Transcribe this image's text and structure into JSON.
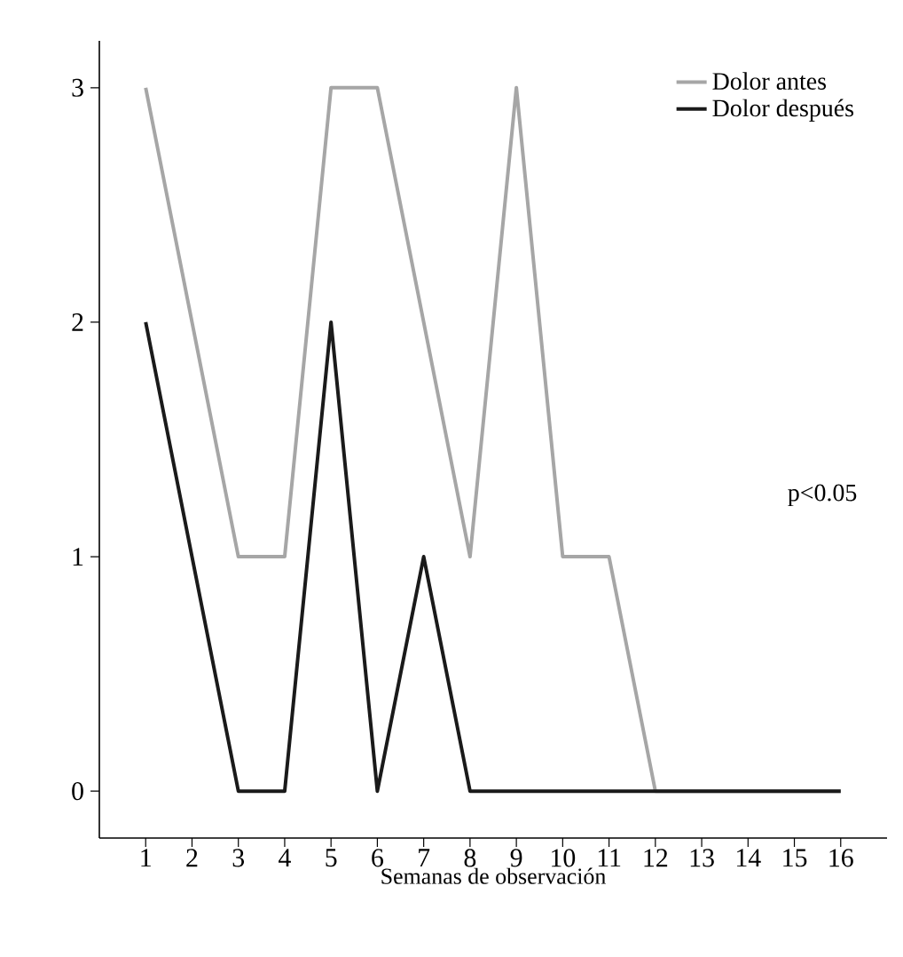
{
  "chart_data": {
    "type": "line",
    "xlabel": "Semanas de observación",
    "x": [
      1,
      2,
      3,
      4,
      5,
      6,
      7,
      8,
      9,
      10,
      11,
      12,
      13,
      14,
      15,
      16
    ],
    "series": [
      {
        "name": "Dolor antes",
        "color": "#a6a6a6",
        "values": [
          3,
          2,
          1,
          1,
          3,
          3,
          2,
          1,
          3,
          1,
          1,
          0,
          0,
          0,
          0,
          0
        ]
      },
      {
        "name": "Dolor después",
        "color": "#1a1a1a",
        "values": [
          2,
          1,
          0,
          0,
          2,
          0,
          1,
          0,
          0,
          0,
          0,
          0,
          0,
          0,
          0,
          0
        ]
      }
    ],
    "xlim": [
      0,
      17
    ],
    "xticks": [
      1,
      2,
      3,
      4,
      5,
      6,
      7,
      8,
      9,
      10,
      11,
      12,
      13,
      14,
      15,
      16
    ],
    "ylim": [
      -0.2,
      3.2
    ],
    "yticks": [
      0,
      1,
      2,
      3
    ],
    "annotations": [
      "p<0.05"
    ],
    "legend": "top right",
    "grid": false,
    "marker": "none",
    "line_style": "solid"
  }
}
